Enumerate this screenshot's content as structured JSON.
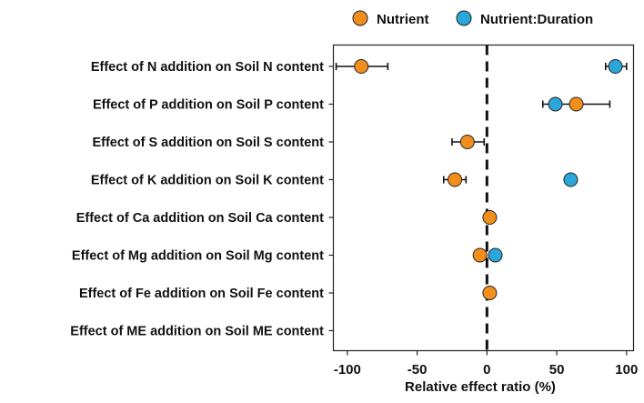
{
  "chart_data": {
    "type": "scatter",
    "title": "",
    "xlabel": "Relative effect ratio (%)",
    "ylabel": "",
    "xlim": [
      -110,
      105
    ],
    "xticks": [
      -100,
      -50,
      0,
      50,
      100
    ],
    "reference_line_x": 0,
    "grid": false,
    "legend_position": "top",
    "categories": [
      "Effect of N addition on Soil N content",
      "Effect of P addition on Soil P content",
      "Effect of S addition on Soil S content",
      "Effect of K addition on Soil K content",
      "Effect of Ca addition on Soil Ca content",
      "Effect of Mg addition on Soil Mg content",
      "Effect of Fe addition on Soil Fe content",
      "Effect of ME addition on Soil ME content"
    ],
    "series": [
      {
        "name": "Nutrient",
        "color": "#F28E1C",
        "points": [
          {
            "category": 0,
            "x": -90,
            "lo": -108,
            "hi": -71
          },
          {
            "category": 1,
            "x": 64,
            "lo": 40,
            "hi": 88
          },
          {
            "category": 2,
            "x": -14,
            "lo": -25,
            "hi": -2
          },
          {
            "category": 3,
            "x": -23,
            "lo": -31,
            "hi": -15
          },
          {
            "category": 4,
            "x": 2,
            "lo": null,
            "hi": null
          },
          {
            "category": 5,
            "x": -5,
            "lo": null,
            "hi": null
          },
          {
            "category": 6,
            "x": 2,
            "lo": null,
            "hi": null
          }
        ]
      },
      {
        "name": "Nutrient:Duration",
        "color": "#2AA7D8",
        "points": [
          {
            "category": 0,
            "x": 92,
            "lo": 85,
            "hi": 100
          },
          {
            "category": 1,
            "x": 49,
            "lo": null,
            "hi": null
          },
          {
            "category": 3,
            "x": 60,
            "lo": null,
            "hi": null
          },
          {
            "category": 5,
            "x": 6,
            "lo": null,
            "hi": null
          }
        ]
      }
    ]
  }
}
